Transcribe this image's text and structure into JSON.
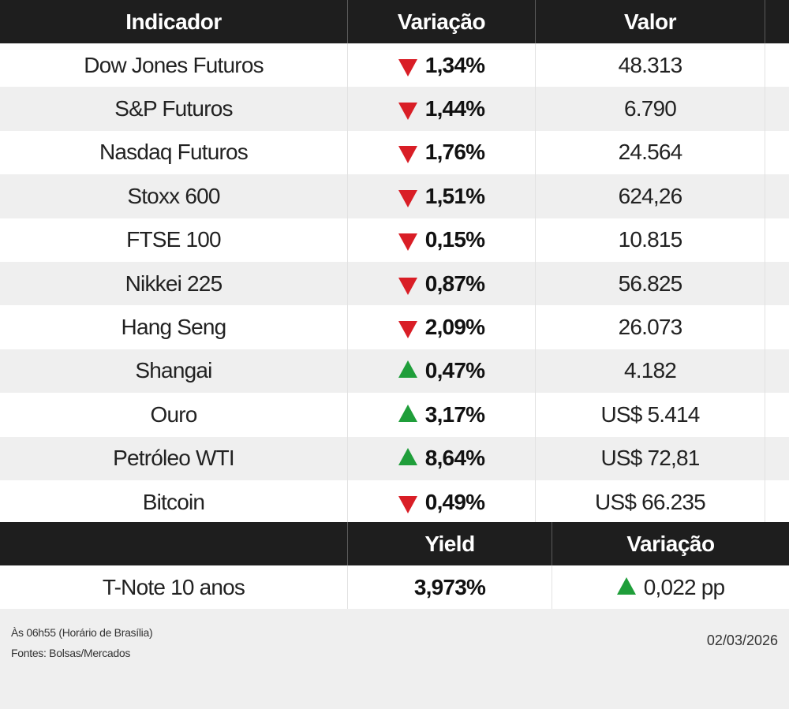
{
  "header": {
    "indicator": "Indicador",
    "variation": "Variação",
    "value": "Valor"
  },
  "colors": {
    "down": "#d91e26",
    "up": "#1f9e3a",
    "header_bg": "#1e1e1e"
  },
  "rows": [
    {
      "name": "Dow Jones Futuros",
      "direction": "down",
      "variation": "1,34%",
      "value": "48.313"
    },
    {
      "name": "S&P Futuros",
      "direction": "down",
      "variation": "1,44%",
      "value": "6.790"
    },
    {
      "name": "Nasdaq Futuros",
      "direction": "down",
      "variation": "1,76%",
      "value": "24.564"
    },
    {
      "name": "Stoxx 600",
      "direction": "down",
      "variation": "1,51%",
      "value": "624,26"
    },
    {
      "name": "FTSE 100",
      "direction": "down",
      "variation": "0,15%",
      "value": "10.815"
    },
    {
      "name": "Nikkei 225",
      "direction": "down",
      "variation": "0,87%",
      "value": "56.825"
    },
    {
      "name": "Hang Seng",
      "direction": "down",
      "variation": "2,09%",
      "value": "26.073"
    },
    {
      "name": "Shangai",
      "direction": "up",
      "variation": "0,47%",
      "value": "4.182"
    },
    {
      "name": "Ouro",
      "direction": "up",
      "variation": "3,17%",
      "value": "US$ 5.414"
    },
    {
      "name": "Petróleo WTI",
      "direction": "up",
      "variation": "8,64%",
      "value": "US$ 72,81"
    },
    {
      "name": "Bitcoin",
      "direction": "down",
      "variation": "0,49%",
      "value": "US$ 66.235"
    }
  ],
  "yield_header": {
    "yield": "Yield",
    "variation": "Variação"
  },
  "yield_row": {
    "name": "T-Note 10 anos",
    "yield": "3,973%",
    "direction": "up",
    "variation": "0,022 pp"
  },
  "footer": {
    "time_note": "Às 06h55 (Horário de Brasília)",
    "sources": "Fontes: Bolsas/Mercados",
    "date": "02/03/2026"
  }
}
